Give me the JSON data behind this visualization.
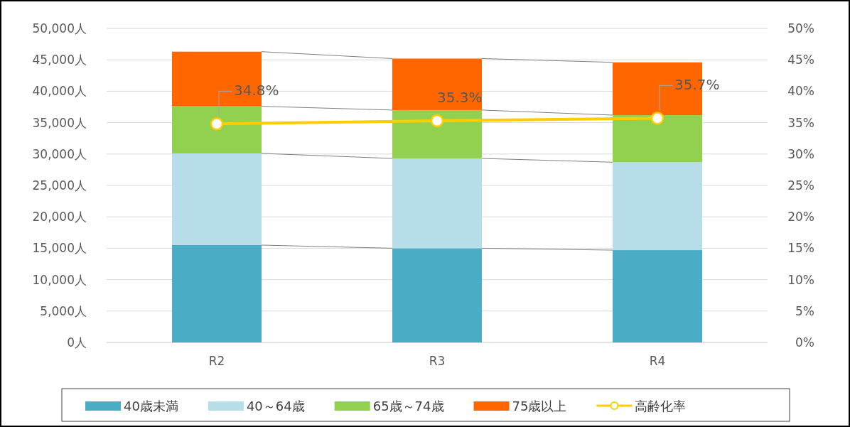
{
  "chart_data": {
    "type": "bar",
    "stacked": true,
    "categories": [
      "R2",
      "R3",
      "R4"
    ],
    "series": [
      {
        "name": "40歳未満",
        "color": "#4bacc6",
        "values": [
          15500,
          15000,
          14700
        ]
      },
      {
        "name": "40～64歳",
        "color": "#b7dde8",
        "values": [
          14600,
          14300,
          14000
        ]
      },
      {
        "name": "65歳～74歳",
        "color": "#92d050",
        "values": [
          7500,
          7700,
          7500
        ]
      },
      {
        "name": "75歳以上",
        "color": "#ff6600",
        "values": [
          8700,
          8200,
          8400
        ]
      },
      {
        "name": "高齢化率",
        "type": "line",
        "axis": "y2",
        "color": "#ffcc00",
        "values": [
          34.8,
          35.3,
          35.7
        ],
        "value_labels": [
          "34.8%",
          "35.3%",
          "35.7%"
        ],
        "marker": "circle"
      }
    ],
    "ylim": [
      0,
      50000
    ],
    "yticks": [
      {
        "value": 0,
        "label": "0人"
      },
      {
        "value": 5000,
        "label": "5,000人"
      },
      {
        "value": 10000,
        "label": "10,000人"
      },
      {
        "value": 15000,
        "label": "15,000人"
      },
      {
        "value": 20000,
        "label": "20,000人"
      },
      {
        "value": 25000,
        "label": "25,000人"
      },
      {
        "value": 30000,
        "label": "30,000人"
      },
      {
        "value": 35000,
        "label": "35,000人"
      },
      {
        "value": 40000,
        "label": "40,000人"
      },
      {
        "value": 45000,
        "label": "45,000人"
      },
      {
        "value": 50000,
        "label": "50,000人"
      }
    ],
    "y2lim": [
      0,
      50
    ],
    "y2ticks": [
      {
        "value": 0,
        "label": "0%"
      },
      {
        "value": 5,
        "label": "5%"
      },
      {
        "value": 10,
        "label": "10%"
      },
      {
        "value": 15,
        "label": "15%"
      },
      {
        "value": 20,
        "label": "20%"
      },
      {
        "value": 25,
        "label": "25%"
      },
      {
        "value": 30,
        "label": "30%"
      },
      {
        "value": 35,
        "label": "35%"
      },
      {
        "value": 40,
        "label": "40%"
      },
      {
        "value": 45,
        "label": "45%"
      },
      {
        "value": 50,
        "label": "50%"
      }
    ],
    "grid": "y",
    "legend": "bottom"
  }
}
